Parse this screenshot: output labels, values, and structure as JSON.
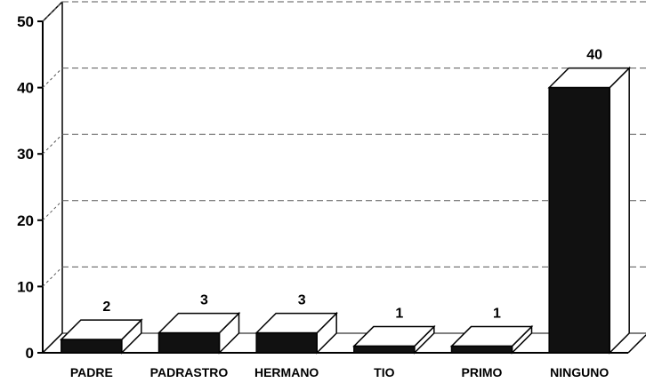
{
  "chart_data": {
    "type": "bar",
    "title": "",
    "xlabel": "",
    "ylabel": "",
    "categories": [
      "PADRE",
      "PADRASTRO",
      "HERMANO",
      "TIO",
      "PRIMO",
      "NINGUNO"
    ],
    "values": [
      2,
      3,
      3,
      1,
      1,
      40
    ],
    "data_labels": [
      "2",
      "3",
      "3",
      "1",
      "1",
      "40"
    ],
    "ylim": [
      0,
      50
    ],
    "yticks": [
      "0",
      "10",
      "20",
      "30",
      "40",
      "50"
    ],
    "grid": true,
    "legend": "none",
    "three_d": true,
    "bar_color": "#111111",
    "bar_top_color": "#ffffff",
    "gridline_color": "#555555"
  }
}
